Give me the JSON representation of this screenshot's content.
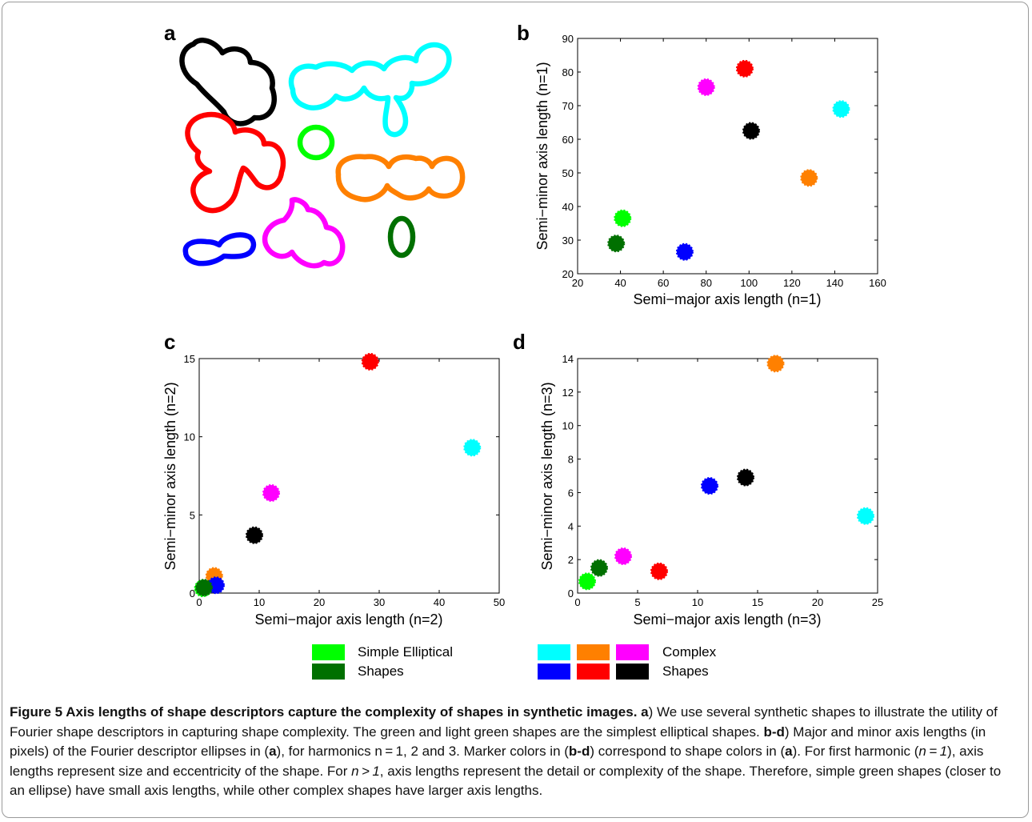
{
  "panel_labels": {
    "a": "a",
    "b": "b",
    "c": "c",
    "d": "d"
  },
  "chart_data": [
    {
      "type": "scatter",
      "panel": "b",
      "xlabel": "Semi−major axis length (n=1)",
      "ylabel": "Semi−minor axis length (n=1)",
      "xlim": [
        20,
        160
      ],
      "ylim": [
        20,
        90
      ],
      "xticks": [
        "20",
        "40",
        "60",
        "80",
        "100",
        "120",
        "140",
        "160"
      ],
      "yticks": [
        "20",
        "30",
        "40",
        "50",
        "60",
        "70",
        "80",
        "90"
      ],
      "points": [
        {
          "color": "#ff0000",
          "x": 98,
          "y": 81
        },
        {
          "color": "#ff00ff",
          "x": 80,
          "y": 75.5
        },
        {
          "color": "#00ffff",
          "x": 143,
          "y": 69
        },
        {
          "color": "#000000",
          "x": 101,
          "y": 62.5
        },
        {
          "color": "#ff8000",
          "x": 128,
          "y": 48.5
        },
        {
          "color": "#00ff00",
          "x": 41,
          "y": 36.5
        },
        {
          "color": "#007000",
          "x": 38,
          "y": 29
        },
        {
          "color": "#0000ff",
          "x": 70,
          "y": 26.5
        }
      ]
    },
    {
      "type": "scatter",
      "panel": "c",
      "xlabel": "Semi−major axis length (n=2)",
      "ylabel": "Semi−minor axis length (n=2)",
      "xlim": [
        0,
        50
      ],
      "ylim": [
        0,
        15
      ],
      "xticks": [
        "0",
        "10",
        "20",
        "30",
        "40",
        "50"
      ],
      "yticks": [
        "0",
        "5",
        "10",
        "15"
      ],
      "points": [
        {
          "color": "#ff0000",
          "x": 28.5,
          "y": 14.8
        },
        {
          "color": "#00ffff",
          "x": 45.5,
          "y": 9.3
        },
        {
          "color": "#ff00ff",
          "x": 12,
          "y": 6.4
        },
        {
          "color": "#000000",
          "x": 9.2,
          "y": 3.7
        },
        {
          "color": "#ff8000",
          "x": 2.5,
          "y": 1.1
        },
        {
          "color": "#0000ff",
          "x": 2.8,
          "y": 0.5
        },
        {
          "color": "#00ff00",
          "x": 0.6,
          "y": 0.3
        },
        {
          "color": "#007000",
          "x": 0.8,
          "y": 0.35
        }
      ]
    },
    {
      "type": "scatter",
      "panel": "d",
      "xlabel": "Semi−major axis length (n=3)",
      "ylabel": "Semi−minor axis length (n=3)",
      "xlim": [
        0,
        25
      ],
      "ylim": [
        0,
        14
      ],
      "xticks": [
        "0",
        "5",
        "10",
        "15",
        "20",
        "25"
      ],
      "yticks": [
        "0",
        "2",
        "4",
        "6",
        "8",
        "10",
        "12",
        "14"
      ],
      "points": [
        {
          "color": "#ff8000",
          "x": 16.5,
          "y": 13.7
        },
        {
          "color": "#000000",
          "x": 14,
          "y": 6.9
        },
        {
          "color": "#0000ff",
          "x": 11,
          "y": 6.4
        },
        {
          "color": "#00ffff",
          "x": 24,
          "y": 4.6
        },
        {
          "color": "#ff00ff",
          "x": 3.8,
          "y": 2.2
        },
        {
          "color": "#007000",
          "x": 1.8,
          "y": 1.5
        },
        {
          "color": "#ff0000",
          "x": 6.8,
          "y": 1.3
        },
        {
          "color": "#00ff00",
          "x": 0.8,
          "y": 0.7
        }
      ]
    }
  ],
  "panel_a_shapes": [
    {
      "name": "black-shape",
      "color": "#000000"
    },
    {
      "name": "cyan-shape",
      "color": "#00ffff"
    },
    {
      "name": "red-shape",
      "color": "#ff0000"
    },
    {
      "name": "light-green-shape",
      "color": "#00ff00"
    },
    {
      "name": "orange-shape",
      "color": "#ff8000"
    },
    {
      "name": "magenta-shape",
      "color": "#ff00ff"
    },
    {
      "name": "dark-green-shape",
      "color": "#007000"
    },
    {
      "name": "blue-shape",
      "color": "#0000ff"
    }
  ],
  "legend": {
    "simple_line1": "Simple Elliptical",
    "simple_line2": "Shapes",
    "complex_line1": "Complex",
    "complex_line2": "Shapes",
    "simple_colors": [
      "#00ff00",
      "#007000"
    ],
    "complex_colors_top": [
      "#00ffff",
      "#ff8000",
      "#ff00ff"
    ],
    "complex_colors_bottom": [
      "#0000ff",
      "#ff0000",
      "#000000"
    ]
  },
  "caption": {
    "title": "Figure 5 Axis lengths of shape descriptors capture the complexity of shapes in synthetic images.",
    "part1_label": "a",
    "part1_text": ") We use several synthetic shapes to illustrate the utility of Fourier shape descriptors in capturing shape complexity. The green and light green shapes are the simplest elliptical shapes.",
    "part2_label": "b-d",
    "part2_text_a": ") Major and minor axis lengths (in pixels) of the Fourier descriptor ellipses in (",
    "part2_ref_a": "a",
    "part2_text_b": "), for harmonics n = 1, 2 and 3. Marker colors in (",
    "part2_ref_bd": "b-d",
    "part2_text_c": ") correspond to shape colors in (",
    "part2_ref_a2": "a",
    "part2_text_d": "). For first harmonic (",
    "part2_n1": "n = 1",
    "part2_text_e": "), axis lengths represent size and eccentricity of the shape. For ",
    "part2_n2": "n > 1",
    "part2_text_f": ", axis lengths represent the detail or complexity of the shape. Therefore, simple green shapes (closer to an ellipse) have small axis lengths, while other complex shapes have larger axis lengths."
  }
}
